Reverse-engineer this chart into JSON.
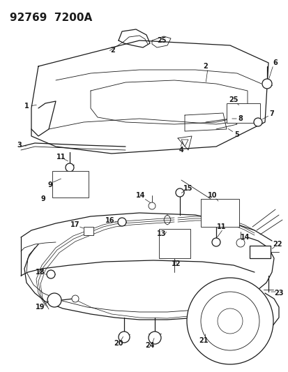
{
  "title": "92769  7200A",
  "bg_color": "#ffffff",
  "line_color": "#1a1a1a",
  "title_fontsize": 11,
  "label_fontsize": 7,
  "fig_w": 4.14,
  "fig_h": 5.33,
  "dpi": 100
}
